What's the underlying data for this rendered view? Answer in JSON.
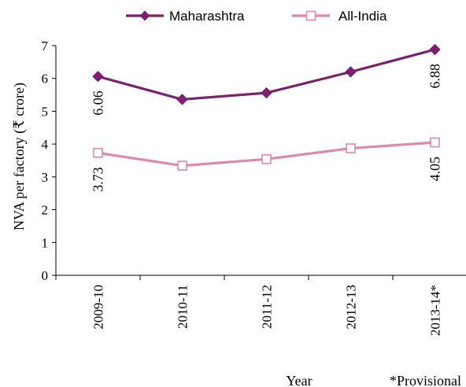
{
  "chart_data": {
    "type": "line",
    "categories": [
      "2009-10",
      "2010-11",
      "2011-12",
      "2012-13",
      "2013-14*"
    ],
    "series": [
      {
        "name": "Maharashtra",
        "values": [
          6.06,
          5.36,
          5.56,
          6.2,
          6.88
        ],
        "color": "#7b1f6f",
        "marker": "filled-diamond",
        "labels": {
          "0": "6.06",
          "4": "6.88"
        }
      },
      {
        "name": "All-India",
        "values": [
          3.73,
          3.34,
          3.54,
          3.87,
          4.05
        ],
        "color": "#e087ac",
        "marker": "hollow-square",
        "labels": {
          "0": "3.73",
          "4": "4.05"
        }
      }
    ],
    "ylim": [
      0,
      7
    ],
    "yticks": [
      "0",
      "1",
      "2",
      "3",
      "4",
      "5",
      "6",
      "7"
    ],
    "ylabel": "NVA per factory (₹ crore)",
    "xlabel": "Year",
    "note": "*Provisional",
    "legend_position": "top",
    "grid": false
  }
}
